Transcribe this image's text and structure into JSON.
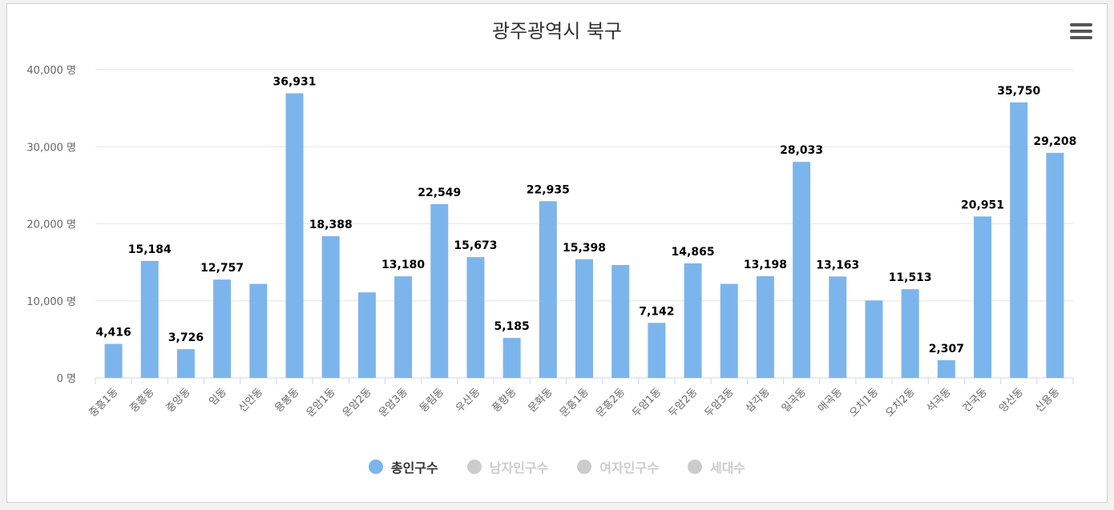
{
  "title": "광주광역시 북구",
  "menu_icon": "hamburger-menu-icon",
  "colors": {
    "bar": "#7cb5ec",
    "grid": "#e6e6e6",
    "axis_text": "#666666",
    "inactive": "#cccccc"
  },
  "legend": [
    {
      "label": "총인구수",
      "active": true
    },
    {
      "label": "남자인구수",
      "active": false
    },
    {
      "label": "여자인구수",
      "active": false
    },
    {
      "label": "세대수",
      "active": false
    }
  ],
  "chart_data": {
    "type": "bar",
    "title": "광주광역시 북구",
    "ylim": [
      0,
      40000
    ],
    "y_ticks": [
      {
        "value": 0,
        "label": "0 명"
      },
      {
        "value": 10000,
        "label": "10,000 명"
      },
      {
        "value": 20000,
        "label": "20,000 명"
      },
      {
        "value": 30000,
        "label": "30,000 명"
      },
      {
        "value": 40000,
        "label": "40,000 명"
      }
    ],
    "categories": [
      "중흥1동",
      "중흥동",
      "중앙동",
      "임동",
      "신안동",
      "용봉동",
      "운암1동",
      "운암2동",
      "운암3동",
      "동림동",
      "우산동",
      "풍향동",
      "문화동",
      "문흥1동",
      "문흥2동",
      "두암1동",
      "두암2동",
      "두암3동",
      "삼각동",
      "일곡동",
      "매곡동",
      "오치1동",
      "오치2동",
      "석곡동",
      "건국동",
      "양산동",
      "신용동"
    ],
    "series": [
      {
        "name": "총인구수",
        "values": [
          4416,
          15184,
          3726,
          12757,
          12200,
          36931,
          18388,
          11100,
          13180,
          22549,
          15673,
          5185,
          22935,
          15398,
          14650,
          7142,
          14865,
          12200,
          13198,
          28033,
          13163,
          10050,
          11513,
          2307,
          20951,
          35750,
          29208
        ],
        "data_labels": [
          "4,416",
          "15,184",
          "3,726",
          "12,757",
          "",
          "36,931",
          "18,388",
          "",
          "13,180",
          "22,549",
          "15,673",
          "5,185",
          "22,935",
          "15,398",
          "",
          "7,142",
          "14,865",
          "",
          "13,198",
          "28,033",
          "13,163",
          "",
          "11,513",
          "2,307",
          "20,951",
          "35,750",
          "29,208"
        ]
      }
    ],
    "grid": true,
    "legend_position": "bottom-center"
  }
}
